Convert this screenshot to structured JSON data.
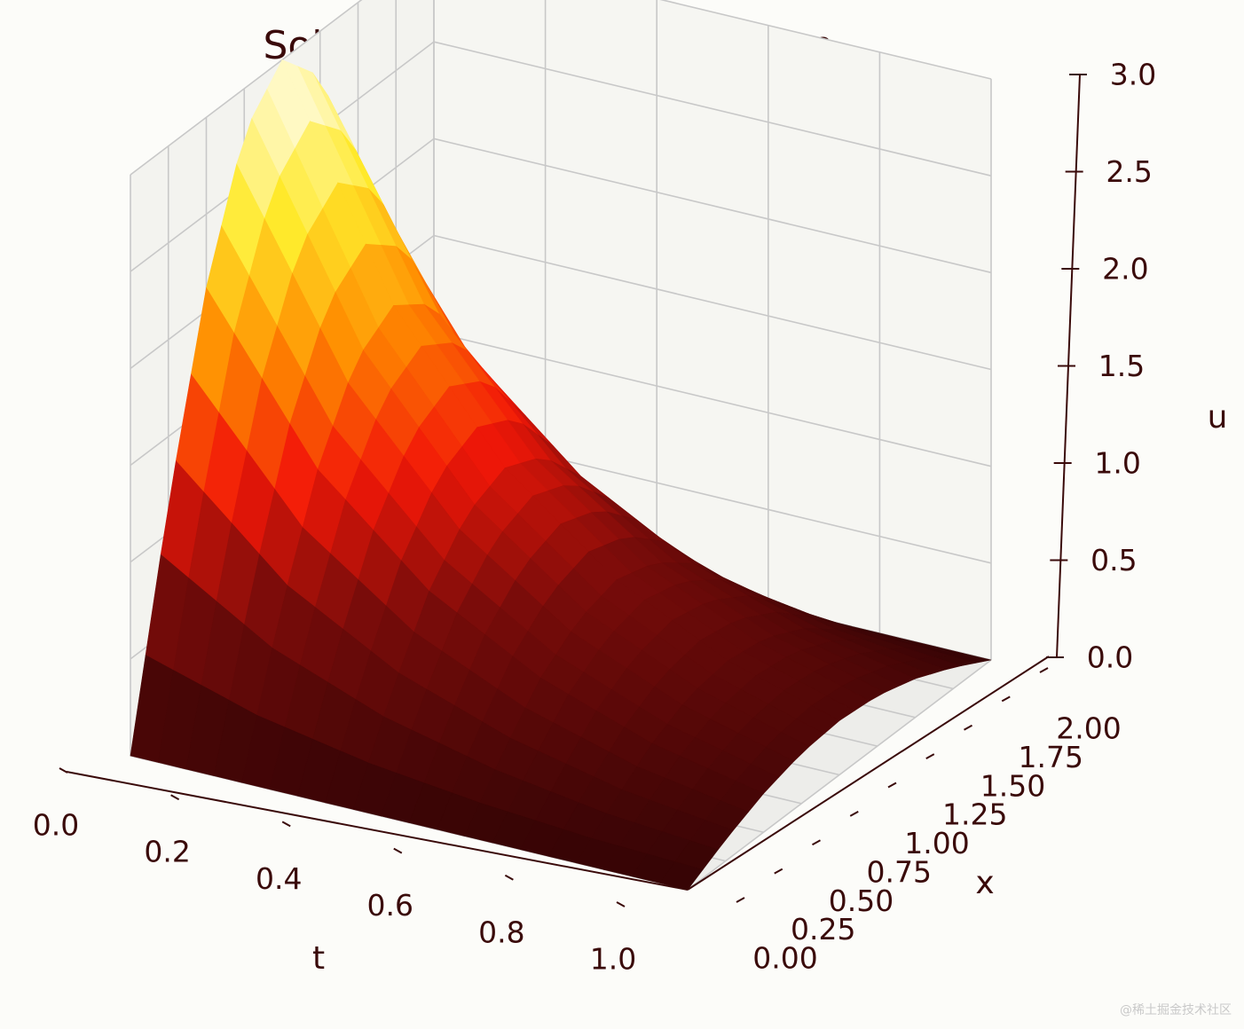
{
  "chart_data": {
    "type": "surface",
    "title": "Solution of the heat equation",
    "xlabel": "t",
    "ylabel": "x",
    "zlabel": "u",
    "t_ticks": [
      "0.0",
      "0.2",
      "0.4",
      "0.6",
      "0.8",
      "1.0"
    ],
    "x_ticks": [
      "0.00",
      "0.25",
      "0.50",
      "0.75",
      "1.00",
      "1.25",
      "1.50",
      "1.75",
      "2.00"
    ],
    "u_ticks": [
      "0.0",
      "0.5",
      "1.0",
      "1.5",
      "2.0",
      "2.5",
      "3.0"
    ],
    "t_range": [
      0,
      1
    ],
    "x_range": [
      0,
      2
    ],
    "u_range": [
      0,
      3
    ],
    "colormap": "hot",
    "colors": {
      "dark": "#350405",
      "mid": "#f21708",
      "orange": "#ff8c00",
      "yellow": "#ffe92a",
      "white": "#ffffff"
    },
    "grid": true,
    "surface_samples": {
      "t": [
        0.0,
        0.2,
        0.4,
        0.6,
        0.8,
        1.0
      ],
      "x": [
        0.0,
        0.25,
        0.5,
        0.75,
        1.0,
        1.25,
        1.5,
        1.75,
        2.0
      ],
      "u": [
        [
          0.0,
          1.15,
          2.12,
          2.77,
          3.0,
          2.77,
          2.12,
          1.15,
          0.0
        ],
        [
          0.0,
          0.72,
          1.32,
          1.73,
          1.87,
          1.73,
          1.32,
          0.72,
          0.0
        ],
        [
          0.0,
          0.45,
          0.83,
          1.08,
          1.17,
          1.08,
          0.83,
          0.45,
          0.0
        ],
        [
          0.0,
          0.28,
          0.52,
          0.67,
          0.73,
          0.67,
          0.52,
          0.28,
          0.0
        ],
        [
          0.0,
          0.17,
          0.32,
          0.42,
          0.45,
          0.42,
          0.32,
          0.17,
          0.0
        ],
        [
          0.0,
          0.11,
          0.2,
          0.26,
          0.28,
          0.26,
          0.2,
          0.11,
          0.0
        ]
      ]
    }
  },
  "watermark": "@稀土掘金技术社区"
}
